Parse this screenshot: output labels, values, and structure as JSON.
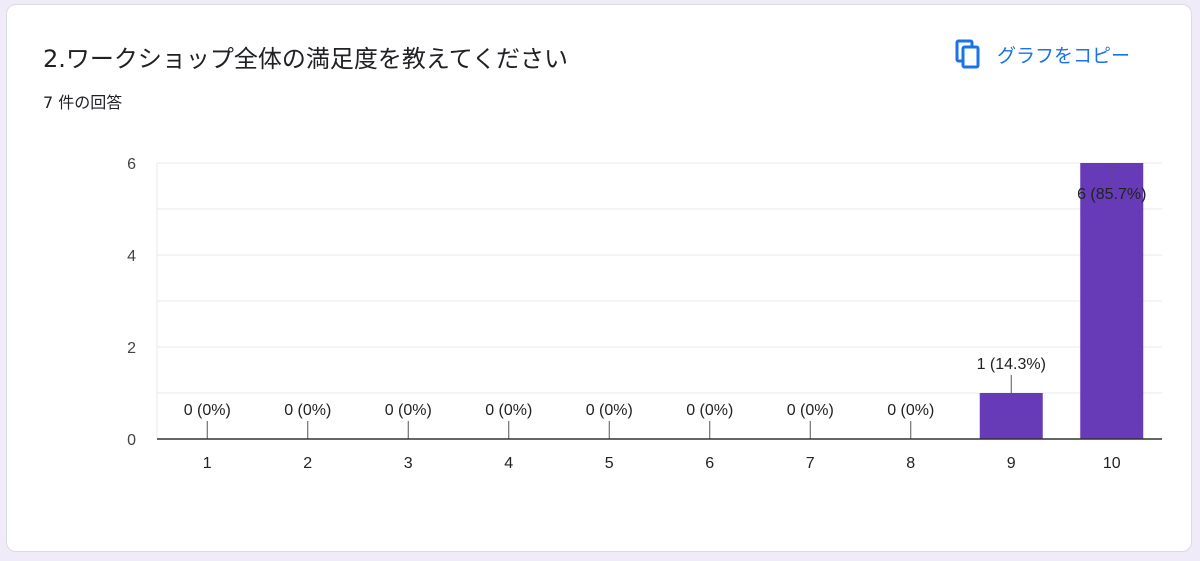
{
  "card": {
    "title": "2.ワークショップ全体の満足度を教えてください",
    "response_count": "7 件の回答",
    "copy_label": "グラフをコピー",
    "copy_icon": "copy-icon"
  },
  "colors": {
    "bar": "#673ab7",
    "accent": "#1a73e8",
    "grid": "#e8e8e8",
    "axis": "#333333"
  },
  "chart_data": {
    "type": "bar",
    "title": "",
    "xlabel": "",
    "ylabel": "",
    "categories": [
      "1",
      "2",
      "3",
      "4",
      "5",
      "6",
      "7",
      "8",
      "9",
      "10"
    ],
    "values": [
      0,
      0,
      0,
      0,
      0,
      0,
      0,
      0,
      1,
      6
    ],
    "data_labels": [
      "0 (0%)",
      "0 (0%)",
      "0 (0%)",
      "0 (0%)",
      "0 (0%)",
      "0 (0%)",
      "0 (0%)",
      "0 (0%)",
      "1 (14.3%)",
      "6 (85.7%)"
    ],
    "ylim": [
      0,
      6
    ],
    "yticks": [
      0,
      2,
      4,
      6
    ],
    "grid": true,
    "legend": "none"
  }
}
